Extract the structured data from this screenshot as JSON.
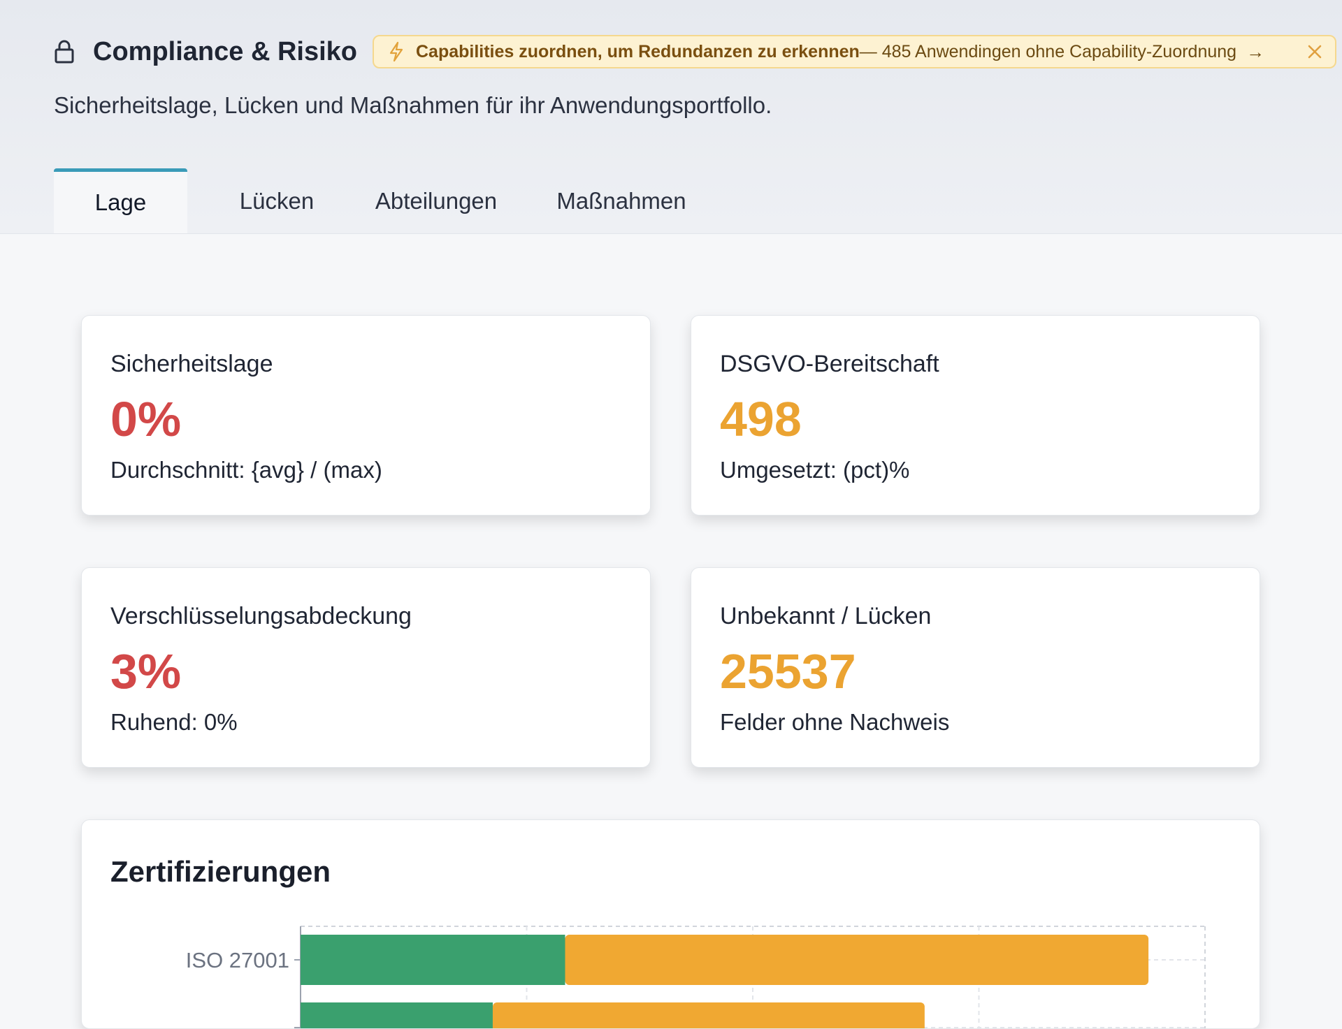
{
  "header": {
    "icon": "lock-icon",
    "title": "Compliance & Risiko",
    "subtitle": "Sicherheitslage, Lücken und Maßnahmen für ihr Anwendungsportfollo."
  },
  "banner": {
    "icon": "lightning-icon",
    "strong_text": "Capabilities zuordnen, um Redundanzen zu erkennen",
    "rest_text": " — 485 Anwendingen ohne Capability-Zuordnung",
    "arrow": "→",
    "close_icon": "close-icon"
  },
  "tabs": [
    {
      "label": "Lage",
      "active": true
    },
    {
      "label": "Lücken",
      "active": false
    },
    {
      "label": "Abteilungen",
      "active": false
    },
    {
      "label": "Maßnahmen",
      "active": false
    }
  ],
  "cards": {
    "security": {
      "label": "Sicherheitslage",
      "value": "0%",
      "sub": "Durchschnitt: {avg} / (max)",
      "color": "#d24848"
    },
    "gdpr": {
      "label": "DSGVO-Bereitschaft",
      "value": "498",
      "sub": "Umgesetzt: (pct)%",
      "color": "#eba331"
    },
    "encryption": {
      "label": "Verschlüsselungsabdeckung",
      "value": "3%",
      "sub": "Ruhend: 0%",
      "color": "#d24848"
    },
    "unknown": {
      "label": "Unbekannt / Lücken",
      "value": "25537",
      "sub": "Felder ohne Nachweis",
      "color": "#eba331"
    }
  },
  "certifications": {
    "title": "Zertifizierungen"
  },
  "chart_data": {
    "type": "bar",
    "orientation": "horizontal",
    "stacked": true,
    "categories": [
      "ISO 27001",
      ""
    ],
    "series": [
      {
        "values": [
          117,
          85
        ],
        "color": "#3aa06e"
      },
      {
        "values": [
          258,
          191
        ],
        "color": "#f0a832"
      }
    ],
    "xlim": [
      0,
      400
    ],
    "grid": true
  }
}
